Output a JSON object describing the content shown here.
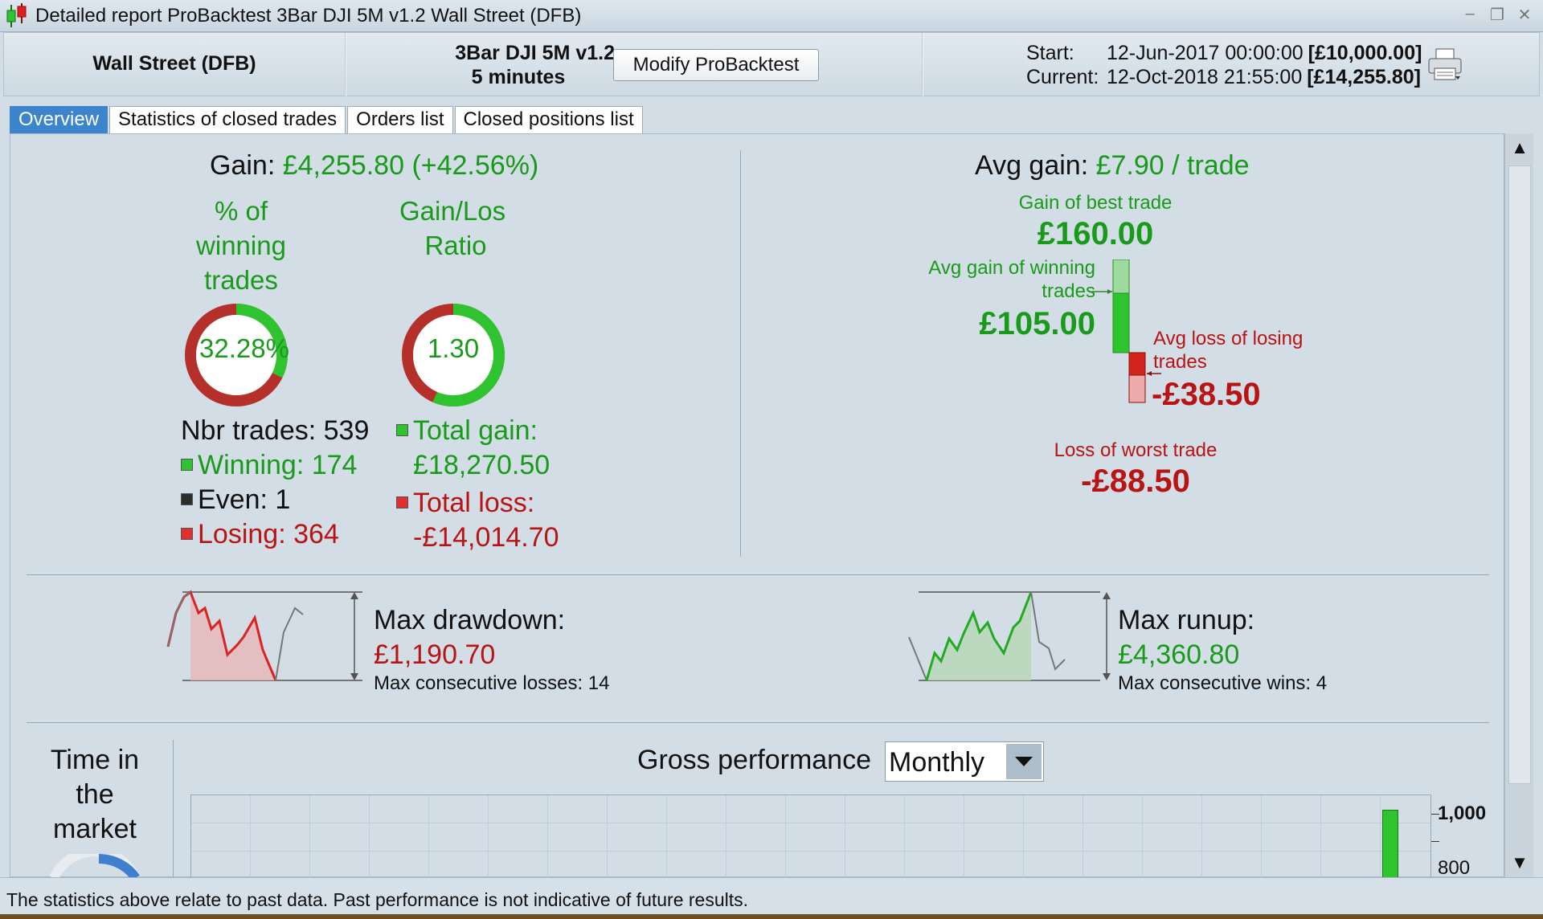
{
  "window": {
    "title": "Detailed report ProBacktest  3Bar DJI 5M v1.2  Wall Street (DFB)",
    "controls": [
      "–",
      "❐",
      "✕"
    ]
  },
  "header": {
    "instrument": "Wall Street (DFB)",
    "strategy_name": "3Bar DJI 5M v1.2",
    "timeframe": "5 minutes",
    "modify_button": "Modify ProBacktest",
    "start_label": "Start:",
    "start_date": "12-Jun-2017 00:00:00",
    "start_capital": "[£10,000.00]",
    "current_label": "Current:",
    "current_date": "12-Oct-2018 21:55:00",
    "current_capital": "[£14,255.80]"
  },
  "tabs": [
    {
      "label": "Overview",
      "active": true
    },
    {
      "label": "Statistics of closed trades",
      "active": false
    },
    {
      "label": "Orders list",
      "active": false
    },
    {
      "label": "Closed positions list",
      "active": false
    }
  ],
  "overview": {
    "gain_label": "Gain:",
    "gain_value": "£4,255.80",
    "gain_pct": "(+42.56%)",
    "winning_pct_label": [
      "% of",
      "winning",
      "trades"
    ],
    "winning_pct_value": "32.28%",
    "winning_pct_fraction": 0.3228,
    "gain_loss_label": [
      "Gain/Los",
      "Ratio"
    ],
    "gain_loss_value": "1.30",
    "gain_loss_fraction": 0.565,
    "nbr_trades_label": "Nbr trades:",
    "nbr_trades_value": "539",
    "winning_label": "Winning:",
    "winning_value": "174",
    "even_label": "Even:",
    "even_value": "1",
    "losing_label": "Losing:",
    "losing_value": "364",
    "total_gain_label": "Total gain:",
    "total_gain_value": "£18,270.50",
    "total_loss_label": "Total loss:",
    "total_loss_value": "-£14,014.70"
  },
  "avg": {
    "avg_gain_label": "Avg gain:",
    "avg_gain_value": "£7.90 / trade",
    "best_trade_label": "Gain of best trade",
    "best_trade_value": "£160.00",
    "avg_win_label_1": "Avg gain of winning",
    "avg_win_label_2": "trades",
    "avg_win_value": "£105.00",
    "avg_loss_label_1": "Avg loss of losing",
    "avg_loss_label_2": "trades",
    "avg_loss_value": "-£38.50",
    "worst_trade_label": "Loss of worst trade",
    "worst_trade_value": "-£88.50"
  },
  "drawdown": {
    "title": "Max drawdown:",
    "value": "£1,190.70",
    "consecutive": "Max consecutive losses: 14"
  },
  "runup": {
    "title": "Max runup:",
    "value": "£4,360.80",
    "consecutive": "Max consecutive wins: 4"
  },
  "time_in_market": {
    "label": [
      "Time in",
      "the",
      "market"
    ]
  },
  "gross": {
    "label": "Gross performance",
    "period": "Monthly",
    "axis_labels": [
      "1,000",
      "800"
    ]
  },
  "footer": {
    "disclaimer": "The statistics above relate to past data. Past performance is not indicative of future results."
  },
  "colors": {
    "gain": "#1a9a1a",
    "loss": "#b81414",
    "tab_active": "#3c84cc"
  }
}
